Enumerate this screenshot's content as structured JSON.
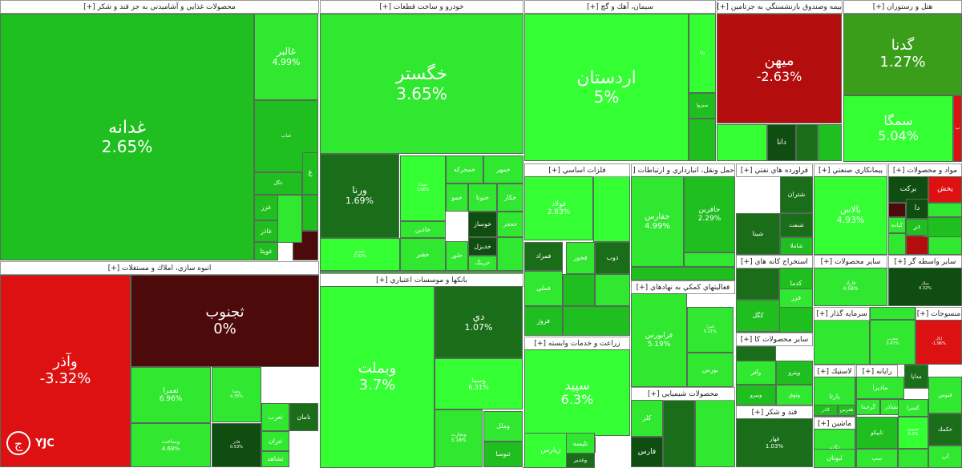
{
  "chart_data": {
    "type": "treemap",
    "sectors": [
      {
        "name": "محصولات غذايي و آشاميدني به جز قند و شكر [+]"
      },
      {
        "name": "خودرو و ساخت قطعات [+]"
      },
      {
        "name": "سيمان، آهك و گچ [+]"
      },
      {
        "name": "بيمه وصندوق بازنشستگي به جزتامين [+]"
      },
      {
        "name": "هتل و رستوران [+]"
      },
      {
        "name": "انبوه سازي، املاك و مستغلات [+]"
      },
      {
        "name": "بانكها و موسسات اعتباري [+]"
      },
      {
        "name": "فلزات اساسي [+]"
      },
      {
        "name": "حمل ونقل، انبارداري و ارتباطات [+]"
      },
      {
        "name": "فراورده هاي نفتي [+]"
      },
      {
        "name": "پيمانكاري صنعتي [+]"
      },
      {
        "name": "مواد و محصولات [+]"
      },
      {
        "name": "زراعت و خدمات وابسته [+]"
      },
      {
        "name": "فعاليتهاي كمكي به نهادهاي [+]"
      },
      {
        "name": "استخراج كانه هاي [+]"
      },
      {
        "name": "ساير محصولات [+]"
      },
      {
        "name": "ساير واسطه گر [+]"
      },
      {
        "name": "محصولات شيميايي [+]"
      },
      {
        "name": "ساير محصولات كا [+]"
      },
      {
        "name": "قند و شكر [+]"
      },
      {
        "name": "سرمايه گذار [+]"
      },
      {
        "name": "منسوجات [+]"
      },
      {
        "name": "لاستيك [+]"
      },
      {
        "name": "رايانه [+]"
      },
      {
        "name": "ماشين [+]"
      }
    ],
    "tiles": [
      {
        "symbol": "غدانه",
        "change": "2.65%"
      },
      {
        "symbol": "غالبر",
        "change": "4.99%"
      },
      {
        "symbol": "خگستر",
        "change": "3.65%"
      },
      {
        "symbol": "ورنا",
        "change": "1.69%"
      },
      {
        "symbol": "اردستان",
        "change": "5%"
      },
      {
        "symbol": "ميهن",
        "change": "-2.63%"
      },
      {
        "symbol": "گدنا",
        "change": "1.27%"
      },
      {
        "symbol": "سمگا",
        "change": "5.04%"
      },
      {
        "symbol": "وآذر",
        "change": "-3.32%"
      },
      {
        "symbol": "ثجنوب",
        "change": "0%"
      },
      {
        "symbol": "ثعمرا",
        "change": "6.96%"
      },
      {
        "symbol": "وساخت",
        "change": "4.68%"
      },
      {
        "symbol": "وبملت",
        "change": "3.7%"
      },
      {
        "symbol": "دي",
        "change": "1.07%"
      },
      {
        "symbol": "وسينا",
        "change": "6.31%"
      },
      {
        "symbol": "وتجارت",
        "change": "3.18%"
      },
      {
        "symbol": "فولاد",
        "change": "2.83%"
      },
      {
        "symbol": "حفارس",
        "change": "4.99%"
      },
      {
        "symbol": "حافرين",
        "change": "2.29%"
      },
      {
        "symbol": "بالاس",
        "change": "4.93%"
      },
      {
        "symbol": "سپيد",
        "change": "6.3%"
      },
      {
        "symbol": "فرابورس",
        "change": "5.19%"
      },
      {
        "symbol": "فارك",
        "change": "4.58%"
      },
      {
        "symbol": "قهار",
        "change": "1.03%"
      },
      {
        "symbol": "دانا",
        "change": ""
      },
      {
        "symbol": "شتران",
        "change": ""
      },
      {
        "symbol": "شينا",
        "change": ""
      },
      {
        "symbol": "بركت",
        "change": ""
      },
      {
        "symbol": "پخش",
        "change": ""
      },
      {
        "symbol": "خمحركه",
        "change": ""
      },
      {
        "symbol": "خمهر",
        "change": ""
      },
      {
        "symbol": "خساپا",
        "change": "3.06%"
      },
      {
        "symbol": "خاذين",
        "change": ""
      },
      {
        "symbol": "خفنر",
        "change": ""
      },
      {
        "symbol": "خودرو",
        "change": "2.02%"
      },
      {
        "symbol": "خوساز",
        "change": ""
      },
      {
        "symbol": "خديزل",
        "change": ""
      },
      {
        "symbol": "خزامیا",
        "change": ""
      },
      {
        "symbol": "ثاميد",
        "change": ""
      },
      {
        "symbol": "نامان",
        "change": ""
      },
      {
        "symbol": "ثتران",
        "change": ""
      },
      {
        "symbol": "ثشاهد",
        "change": ""
      },
      {
        "symbol": "ثعرب",
        "change": ""
      },
      {
        "symbol": "غزر",
        "change": ""
      },
      {
        "symbol": "غاذر",
        "change": ""
      },
      {
        "symbol": "غويتا",
        "change": ""
      },
      {
        "symbol": "كدما",
        "change": ""
      },
      {
        "symbol": "كگل",
        "change": ""
      },
      {
        "symbol": "فزر",
        "change": ""
      },
      {
        "symbol": "بورس",
        "change": ""
      },
      {
        "symbol": "فارس",
        "change": ""
      },
      {
        "symbol": "كلر",
        "change": ""
      },
      {
        "symbol": "تكنو",
        "change": ""
      },
      {
        "symbol": "پارتا",
        "change": ""
      },
      {
        "symbol": "ماديرا",
        "change": ""
      },
      {
        "symbol": "لبوتان",
        "change": ""
      },
      {
        "symbol": "زپارس",
        "change": ""
      },
      {
        "symbol": "زبينا",
        "change": ""
      },
      {
        "symbol": "فمراد",
        "change": ""
      },
      {
        "symbol": "فملي",
        "change": ""
      },
      {
        "symbol": "فروژ",
        "change": ""
      },
      {
        "symbol": "فخوز",
        "change": ""
      },
      {
        "symbol": "ذوب",
        "change": ""
      },
      {
        "symbol": "سبزوا",
        "change": ""
      },
      {
        "symbol": "وملل",
        "change": ""
      },
      {
        "symbol": "ثنوسا",
        "change": ""
      },
      {
        "symbol": "لابسا",
        "change": ""
      },
      {
        "symbol": "تليسه",
        "change": ""
      },
      {
        "symbol": "وغدير",
        "change": ""
      },
      {
        "symbol": "خكار",
        "change": ""
      },
      {
        "symbol": "خمو",
        "change": ""
      },
      {
        "symbol": "خلور",
        "change": ""
      },
      {
        "symbol": "خرينگ",
        "change": ""
      },
      {
        "symbol": "خنوتا",
        "change": ""
      },
      {
        "symbol": "خحجر",
        "change": ""
      },
      {
        "symbol": "اپال",
        "change": "-1.96%"
      },
      {
        "symbol": "كمرا",
        "change": "0.08%"
      },
      {
        "symbol": "فاذر",
        "change": "0.53%"
      },
      {
        "symbol": "وصنا",
        "change": "4.35%"
      },
      {
        "symbol": "قمرا",
        "change": "5.21%"
      },
      {
        "symbol": "وانا",
        "change": ""
      },
      {
        "symbol": "كباده",
        "change": ""
      },
      {
        "symbol": "قلبا",
        "change": ""
      },
      {
        "symbol": "گرحما",
        "change": ""
      },
      {
        "symbol": "غشاذر",
        "change": ""
      },
      {
        "symbol": "مداپا",
        "change": ""
      },
      {
        "symbol": "سلار",
        "change": "4.32%"
      },
      {
        "symbol": "كاذر",
        "change": ""
      },
      {
        "symbol": "هفرس",
        "change": ""
      },
      {
        "symbol": "فتوس",
        "change": ""
      },
      {
        "symbol": "خكمك",
        "change": ""
      },
      {
        "symbol": "آپ",
        "change": ""
      },
      {
        "symbol": "تاپيكو",
        "change": ""
      },
      {
        "symbol": "كسرا",
        "change": ""
      },
      {
        "symbol": "دا",
        "change": ""
      },
      {
        "symbol": "در",
        "change": ""
      },
      {
        "symbol": "شنفت",
        "change": ""
      },
      {
        "symbol": "شاملا",
        "change": ""
      },
      {
        "symbol": "غناب",
        "change": ""
      },
      {
        "symbol": "غگل",
        "change": ""
      },
      {
        "symbol": "غ",
        "change": ""
      },
      {
        "symbol": "وآفر",
        "change": ""
      },
      {
        "symbol": "وپترو",
        "change": ""
      },
      {
        "symbol": "وثوق",
        "change": ""
      },
      {
        "symbol": "ونیرو",
        "change": ""
      },
      {
        "symbol": "سغرب",
        "change": "0.47%"
      },
      {
        "symbol": "سپ",
        "change": ""
      },
      {
        "symbol": "خموتور",
        "change": "5.2%"
      },
      {
        "symbol": "ب",
        "change": ""
      }
    ]
  },
  "colors": {
    "strong_green": "#33ff33",
    "mid_green": "#1fbf1f",
    "light_green": "#2fe82f",
    "dark_green": "#3b9e1b",
    "deep_green": "#1a6e1a",
    "darkest_green": "#104d10",
    "red": "#dd1111",
    "dark_red": "#b30d0d",
    "maroon": "#4d0a0a",
    "border": "#556b55"
  },
  "watermark": {
    "logo_text": "YJC",
    "logo_icon": "yjc-logo-icon"
  }
}
